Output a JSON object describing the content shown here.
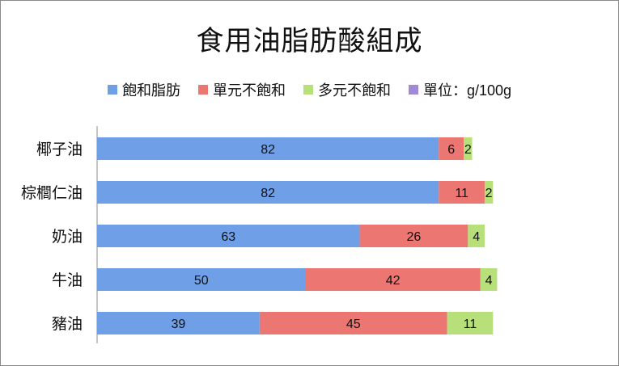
{
  "chart_data": {
    "type": "bar",
    "orientation": "horizontal",
    "stacked": true,
    "title": "食用油脂肪酸組成",
    "categories": [
      "椰子油",
      "棕櫚仁油",
      "奶油",
      "牛油",
      "豬油"
    ],
    "series": [
      {
        "name": "飽和脂肪",
        "color": "#6f9fe6",
        "values": [
          82,
          82,
          63,
          50,
          39
        ]
      },
      {
        "name": "單元不飽和",
        "color": "#eb7672",
        "values": [
          6,
          11,
          26,
          42,
          45
        ]
      },
      {
        "name": "多元不飽和",
        "color": "#b8e07a",
        "values": [
          2,
          2,
          4,
          4,
          11
        ]
      }
    ],
    "legend_extra": {
      "name": "單位：g/100g",
      "color": "#a487d8"
    },
    "legend_position": "top",
    "xlim": [
      0,
      100
    ],
    "grid": false
  }
}
